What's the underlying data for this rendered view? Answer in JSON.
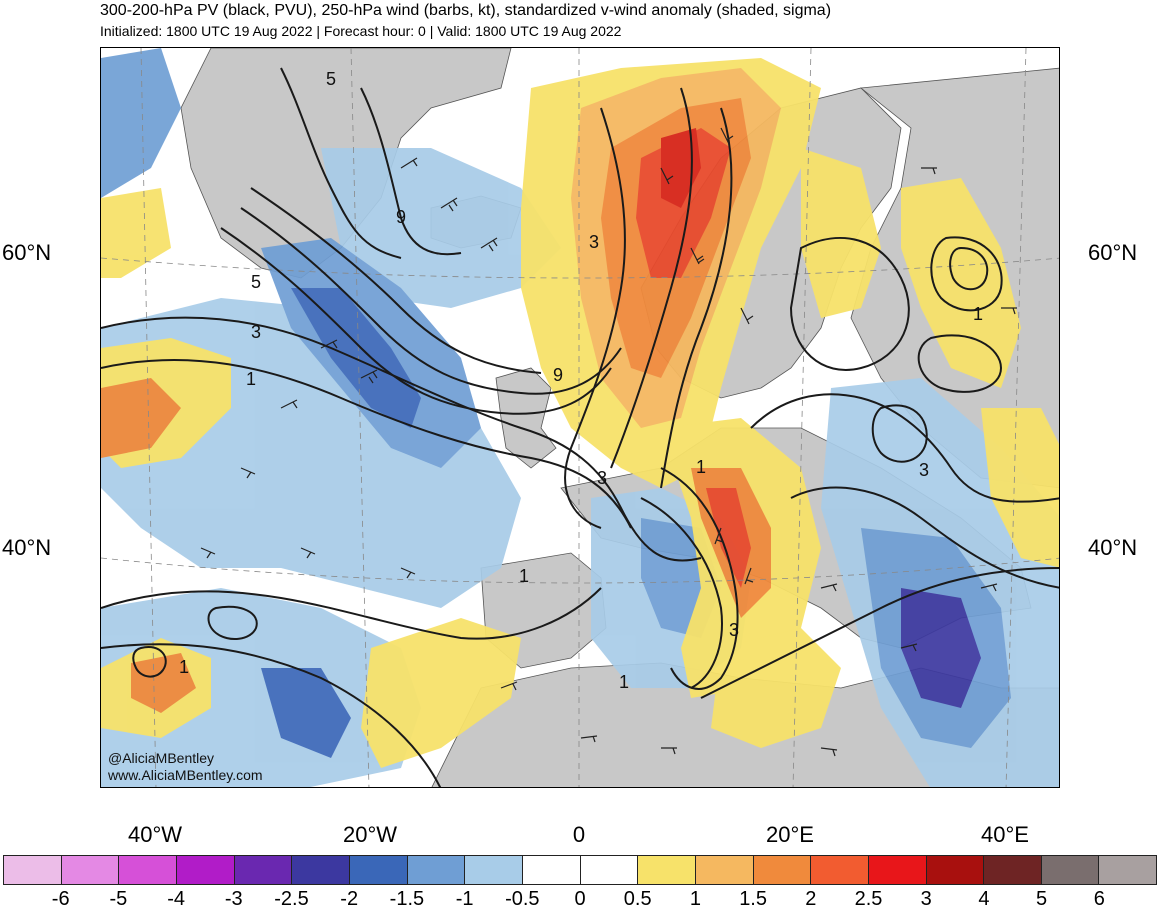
{
  "header": {
    "title": "300-200-hPa PV (black, PVU), 250-hPa wind (barbs, kt), standardized v-wind anomaly (shaded, sigma)",
    "subtitle": "Initialized: 1800 UTC 19 Aug 2022 | Forecast hour: 0 | Valid: 1800 UTC 19 Aug 2022"
  },
  "map": {
    "lat_labels": [
      "60°N",
      "40°N"
    ],
    "lon_labels": [
      "40°W",
      "20°W",
      "0",
      "20°E",
      "40°E"
    ],
    "contour_labels": [
      "5",
      "9",
      "5",
      "3",
      "1",
      "9",
      "1",
      "3",
      "1",
      "1",
      "3",
      "1",
      "3",
      "3",
      "1"
    ],
    "credits": [
      "@AliciaMBentley",
      "www.AliciaMBentley.com"
    ],
    "colors": {
      "land": "#c8c8c8",
      "neg_light": "#a8cce8",
      "neg_mid": "#6f9ed4",
      "neg_dark": "#3a67b8",
      "neg_deep": "#3c38a0",
      "pos_yellow": "#f7e26a",
      "pos_orange": "#f5b860",
      "pos_dark_orange": "#f08a3c",
      "pos_red": "#e84a2c",
      "pos_deep_red": "#d62418"
    }
  },
  "colorbar": {
    "ticks": [
      "-6",
      "-5",
      "-4",
      "-3",
      "-2.5",
      "-2",
      "-1.5",
      "-1",
      "-0.5",
      "0",
      "0.5",
      "1",
      "1.5",
      "2",
      "2.5",
      "3",
      "4",
      "5",
      "6"
    ],
    "colors": [
      "#ecbde8",
      "#e489e4",
      "#d650d8",
      "#b11cc8",
      "#6a28b0",
      "#3c38a0",
      "#3a67b8",
      "#6f9ed4",
      "#a8cce8",
      "#ffffff",
      "#ffffff",
      "#f7e26a",
      "#f5b860",
      "#f08a3c",
      "#f25c30",
      "#e8161a",
      "#a8100e",
      "#6e2424",
      "#7a6e6e",
      "#a8a0a0"
    ]
  }
}
